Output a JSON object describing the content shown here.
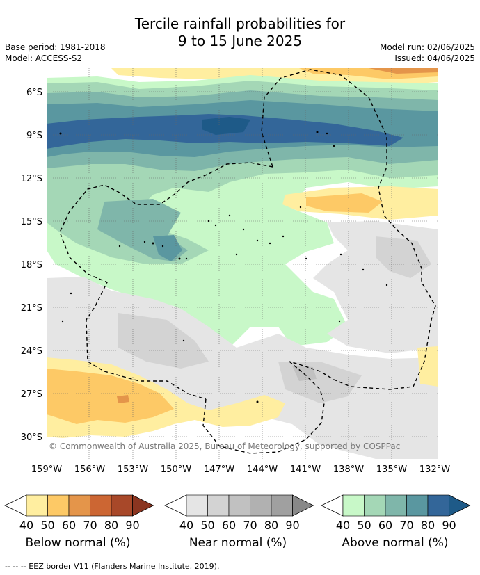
{
  "title_line1": "Tercile rainfall probabilities for",
  "title_line2": "9 to 15 June 2025",
  "base_period": "Base period: 1981-2018",
  "model": "Model: ACCESS-S2",
  "model_run": "Model run: 02/06/2025",
  "issued": "Issued: 04/06/2025",
  "attribution": "© Commonwealth of Australia 2025, Bureau of Meteorology, supported by COSPPac",
  "lat_labels": [
    "6°S",
    "9°S",
    "12°S",
    "15°S",
    "18°S",
    "21°S",
    "24°S",
    "27°S",
    "30°S"
  ],
  "lon_labels": [
    "159°W",
    "156°W",
    "153°W",
    "150°W",
    "147°W",
    "144°W",
    "141°W",
    "138°W",
    "135°W",
    "132°W"
  ],
  "colorbars": [
    {
      "label": "Below normal (%)",
      "ticks": [
        "40",
        "50",
        "60",
        "70",
        "80",
        "90"
      ],
      "colors": [
        "#ffeea0",
        "#fdc966",
        "#e4954a",
        "#cc6633",
        "#a84829",
        "#8b3520"
      ]
    },
    {
      "label": "Near normal (%)",
      "ticks": [
        "40",
        "50",
        "60",
        "70",
        "80",
        "90"
      ],
      "colors": [
        "#e5e5e5",
        "#d3d3d3",
        "#c1c1c1",
        "#b1b1b1",
        "#a0a0a0",
        "#888888"
      ]
    },
    {
      "label": "Above normal (%)",
      "ticks": [
        "40",
        "50",
        "60",
        "70",
        "80",
        "90"
      ],
      "colors": [
        "#c8f8c8",
        "#a4d7b6",
        "#7fb6aa",
        "#5a97a0",
        "#336699",
        "#1e5a88"
      ]
    }
  ],
  "footer": "--  --  -- EEZ border V11 (Flanders Marine Institute, 2019)."
}
